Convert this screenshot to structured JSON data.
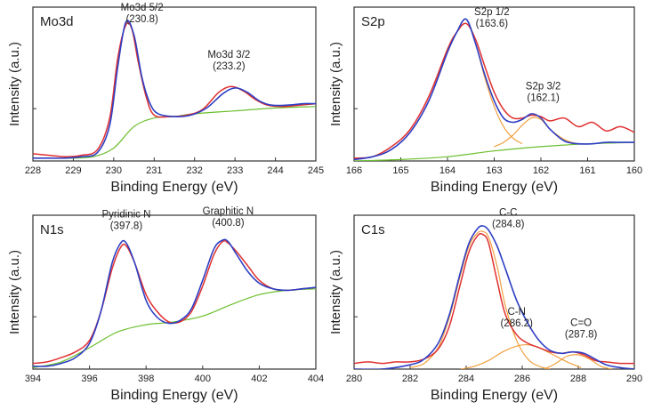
{
  "chart_data": [
    {
      "type": "line",
      "panel_label": "Mo3d",
      "xlabel": "Binding Energy (eV)",
      "ylabel": "Intensity (a.u.)",
      "xticks": [
        "228",
        "229",
        "230",
        "231",
        "232",
        "233",
        "244",
        "245"
      ],
      "xlim": [
        0,
        7
      ],
      "ylim": [
        0,
        1
      ],
      "colors": {
        "raw": "#e03030",
        "fit": "#2e3fc4",
        "baseline": "#6cbf2e"
      },
      "series": [
        {
          "role": "raw",
          "x": [
            0,
            0.4,
            0.8,
            1.2,
            1.6,
            1.9,
            2.1,
            2.3,
            2.45,
            2.6,
            2.8,
            3.0,
            3.4,
            3.8,
            4.2,
            4.6,
            4.9,
            5.2,
            5.5,
            5.8,
            6.2,
            6.6,
            7.0
          ],
          "y": [
            0.05,
            0.04,
            0.03,
            0.04,
            0.08,
            0.3,
            0.72,
            0.95,
            0.92,
            0.7,
            0.45,
            0.32,
            0.31,
            0.32,
            0.36,
            0.48,
            0.52,
            0.49,
            0.43,
            0.39,
            0.38,
            0.39,
            0.4
          ]
        },
        {
          "role": "fit",
          "x": [
            0,
            0.4,
            0.8,
            1.2,
            1.6,
            1.9,
            2.1,
            2.3,
            2.5,
            2.7,
            2.9,
            3.1,
            3.5,
            3.9,
            4.3,
            4.7,
            5.0,
            5.3,
            5.6,
            5.9,
            6.3,
            6.7,
            7.0
          ],
          "y": [
            0.02,
            0.02,
            0.02,
            0.03,
            0.06,
            0.25,
            0.66,
            0.97,
            0.88,
            0.58,
            0.4,
            0.33,
            0.31,
            0.32,
            0.37,
            0.47,
            0.51,
            0.48,
            0.42,
            0.39,
            0.39,
            0.4,
            0.4
          ]
        },
        {
          "role": "baseline",
          "x": [
            0,
            0.5,
            1.0,
            1.5,
            2.0,
            2.5,
            3.0,
            3.5,
            4.0,
            5.0,
            6.0,
            7.0
          ],
          "y": [
            0.02,
            0.02,
            0.02,
            0.03,
            0.09,
            0.24,
            0.3,
            0.31,
            0.33,
            0.35,
            0.37,
            0.38
          ]
        }
      ],
      "annotations": [
        {
          "lines": [
            "Mo3d 5/2",
            "(230.8)"
          ],
          "x": 2.7,
          "y": 1.05
        },
        {
          "lines": [
            "Mo3d 3/2",
            "(233.2)"
          ],
          "x": 4.85,
          "y": 0.72
        }
      ]
    },
    {
      "type": "line",
      "panel_label": "S2p",
      "xlabel": "Binding Energy (eV)",
      "ylabel": "Intensity (a.u.)",
      "xticks": [
        "166",
        "165",
        "164",
        "163",
        "162",
        "161",
        "160"
      ],
      "xlim": [
        166,
        160
      ],
      "ylim": [
        0,
        1
      ],
      "colors": {
        "raw": "#e03030",
        "fit": "#2e3fc4",
        "component": "#f0a040",
        "baseline": "#6cbf2e"
      },
      "series": [
        {
          "role": "raw",
          "x": [
            166,
            165.6,
            165.2,
            164.8,
            164.4,
            164.0,
            163.8,
            163.6,
            163.4,
            163.2,
            163.0,
            162.8,
            162.6,
            162.4,
            162.2,
            162.0,
            161.8,
            161.5,
            161.2,
            160.9,
            160.6,
            160.3,
            160
          ],
          "y": [
            0.02,
            0.03,
            0.1,
            0.22,
            0.45,
            0.78,
            0.9,
            0.96,
            0.85,
            0.66,
            0.48,
            0.36,
            0.3,
            0.3,
            0.32,
            0.31,
            0.28,
            0.3,
            0.24,
            0.27,
            0.21,
            0.24,
            0.2
          ]
        },
        {
          "role": "fit",
          "x": [
            166,
            165.6,
            165.2,
            164.8,
            164.4,
            164.0,
            163.8,
            163.6,
            163.4,
            163.2,
            163.0,
            162.8,
            162.6,
            162.4,
            162.2,
            162.0,
            161.8,
            161.5,
            161.2,
            160.9,
            160.6,
            160.3,
            160
          ],
          "y": [
            0.01,
            0.03,
            0.08,
            0.2,
            0.42,
            0.76,
            0.9,
            0.99,
            0.82,
            0.6,
            0.42,
            0.3,
            0.27,
            0.29,
            0.33,
            0.3,
            0.22,
            0.14,
            0.12,
            0.12,
            0.13,
            0.13,
            0.13
          ]
        },
        {
          "role": "component",
          "x": [
            166,
            165.6,
            165.2,
            164.8,
            164.4,
            164.0,
            163.8,
            163.6,
            163.4,
            163.2,
            163.0,
            162.8,
            162.6,
            162.4
          ],
          "y": [
            0.01,
            0.03,
            0.08,
            0.2,
            0.42,
            0.76,
            0.9,
            0.99,
            0.82,
            0.58,
            0.38,
            0.24,
            0.16,
            0.12
          ]
        },
        {
          "role": "component",
          "x": [
            163.0,
            162.8,
            162.6,
            162.4,
            162.2,
            162.0,
            161.8,
            161.5,
            161.2,
            160.9
          ],
          "y": [
            0.1,
            0.13,
            0.18,
            0.25,
            0.3,
            0.29,
            0.22,
            0.15,
            0.12,
            0.12
          ]
        },
        {
          "role": "baseline",
          "x": [
            166,
            165,
            164,
            163,
            162,
            161,
            160
          ],
          "y": [
            0.0,
            0.01,
            0.03,
            0.07,
            0.1,
            0.12,
            0.13
          ]
        }
      ],
      "annotations": [
        {
          "lines": [
            "S2p 1/2",
            "(163.6)"
          ],
          "x": 163.05,
          "y": 1.02
        },
        {
          "lines": [
            "S2p 3/2",
            "(162.1)"
          ],
          "x": 161.95,
          "y": 0.5
        }
      ]
    },
    {
      "type": "line",
      "panel_label": "N1s",
      "xlabel": "Binding Energy (eV)",
      "ylabel": "Intensity (a.u.)",
      "xticks": [
        "394",
        "396",
        "398",
        "400",
        "402",
        "404"
      ],
      "xlim": [
        394,
        404
      ],
      "ylim": [
        0,
        1
      ],
      "colors": {
        "raw": "#e03030",
        "fit": "#2e3fc4",
        "baseline": "#6cbf2e"
      },
      "series": [
        {
          "role": "raw",
          "x": [
            394,
            394.5,
            395,
            395.5,
            396,
            396.4,
            396.8,
            397.1,
            397.3,
            397.6,
            398.0,
            398.4,
            398.8,
            399.2,
            399.6,
            400.0,
            400.4,
            400.7,
            400.9,
            401.2,
            401.6,
            402.0,
            402.5,
            403.0,
            403.5,
            404
          ],
          "y": [
            0.04,
            0.05,
            0.08,
            0.12,
            0.2,
            0.4,
            0.7,
            0.85,
            0.86,
            0.74,
            0.52,
            0.4,
            0.33,
            0.33,
            0.4,
            0.58,
            0.8,
            0.89,
            0.88,
            0.82,
            0.72,
            0.62,
            0.56,
            0.55,
            0.56,
            0.57
          ]
        },
        {
          "role": "fit",
          "x": [
            394,
            394.5,
            395,
            395.5,
            396,
            396.4,
            396.8,
            397.1,
            397.3,
            397.6,
            398.0,
            398.4,
            398.8,
            399.2,
            399.6,
            400.0,
            400.4,
            400.7,
            400.9,
            401.2,
            401.6,
            402.0,
            402.5,
            403.0,
            403.5,
            404
          ],
          "y": [
            0.02,
            0.02,
            0.04,
            0.08,
            0.18,
            0.4,
            0.74,
            0.88,
            0.88,
            0.74,
            0.48,
            0.36,
            0.32,
            0.34,
            0.42,
            0.62,
            0.84,
            0.9,
            0.89,
            0.8,
            0.68,
            0.6,
            0.56,
            0.55,
            0.56,
            0.57
          ]
        },
        {
          "role": "baseline",
          "x": [
            394,
            395,
            396,
            397,
            398,
            398.5,
            399,
            400,
            401,
            402,
            403,
            404
          ],
          "y": [
            0.01,
            0.05,
            0.15,
            0.26,
            0.31,
            0.32,
            0.33,
            0.37,
            0.45,
            0.52,
            0.55,
            0.56
          ]
        }
      ],
      "annotations": [
        {
          "lines": [
            "Pyridinic N",
            "(397.8)"
          ],
          "x": 397.3,
          "y": 1.06
        },
        {
          "lines": [
            "Graphitic N",
            "(400.8)"
          ],
          "x": 400.9,
          "y": 1.08
        }
      ]
    },
    {
      "type": "line",
      "panel_label": "C1s",
      "xlabel": "Binding Energy (eV)",
      "ylabel": "Intensity (a.u.)",
      "xticks": [
        "280",
        "282",
        "284",
        "286",
        "288",
        "290"
      ],
      "xlim": [
        280,
        290
      ],
      "ylim": [
        0,
        1
      ],
      "colors": {
        "raw": "#e03030",
        "fit": "#2e3fc4",
        "component": "#f0a040"
      },
      "series": [
        {
          "role": "raw",
          "x": [
            280,
            280.5,
            281,
            281.5,
            282,
            282.5,
            283,
            283.4,
            283.8,
            284.1,
            284.4,
            284.6,
            284.8,
            285.1,
            285.4,
            285.8,
            286.2,
            286.6,
            287.0,
            287.4,
            287.8,
            288.2,
            288.6,
            289.0,
            289.5,
            290
          ],
          "y": [
            0.04,
            0.05,
            0.04,
            0.05,
            0.05,
            0.07,
            0.14,
            0.3,
            0.6,
            0.82,
            0.93,
            0.94,
            0.88,
            0.62,
            0.38,
            0.24,
            0.18,
            0.15,
            0.12,
            0.11,
            0.12,
            0.1,
            0.06,
            0.05,
            0.04,
            0.04
          ]
        },
        {
          "role": "fit",
          "x": [
            280,
            281,
            282,
            282.5,
            283,
            283.4,
            283.8,
            284.1,
            284.4,
            284.6,
            284.8,
            285.1,
            285.4,
            285.8,
            286.2,
            286.6,
            287.0,
            287.4,
            287.8,
            288.2,
            288.6,
            289.0,
            289.5,
            290
          ],
          "y": [
            0.0,
            0.0,
            0.03,
            0.07,
            0.18,
            0.38,
            0.68,
            0.88,
            0.98,
            1.0,
            0.97,
            0.86,
            0.7,
            0.48,
            0.32,
            0.2,
            0.13,
            0.11,
            0.12,
            0.11,
            0.07,
            0.03,
            0.01,
            0.0
          ]
        },
        {
          "role": "component",
          "x": [
            282,
            282.5,
            283,
            283.4,
            283.8,
            284.1,
            284.4,
            284.6,
            284.8,
            285.1,
            285.4,
            285.8,
            286.2,
            286.6,
            287.0
          ],
          "y": [
            0.01,
            0.04,
            0.15,
            0.36,
            0.66,
            0.86,
            0.95,
            0.96,
            0.92,
            0.72,
            0.44,
            0.2,
            0.07,
            0.02,
            0.0
          ]
        },
        {
          "role": "component",
          "x": [
            283.8,
            284.3,
            284.8,
            285.3,
            285.8,
            286.2,
            286.6,
            287.1,
            287.6,
            288.1
          ],
          "y": [
            0.0,
            0.02,
            0.06,
            0.12,
            0.16,
            0.17,
            0.15,
            0.1,
            0.05,
            0.01
          ]
        },
        {
          "role": "component",
          "x": [
            286.8,
            287.2,
            287.6,
            288.0,
            288.4,
            288.8,
            289.2
          ],
          "y": [
            0.0,
            0.04,
            0.09,
            0.1,
            0.07,
            0.02,
            0.0
          ]
        }
      ],
      "annotations": [
        {
          "lines": [
            "C-C",
            "(284.8)"
          ],
          "x": 285.5,
          "y": 1.07
        },
        {
          "lines": [
            "C-N",
            "(286.2)"
          ],
          "x": 285.8,
          "y": 0.38
        },
        {
          "lines": [
            "C=O",
            "(287.8)"
          ],
          "x": 288.1,
          "y": 0.3
        }
      ]
    }
  ]
}
